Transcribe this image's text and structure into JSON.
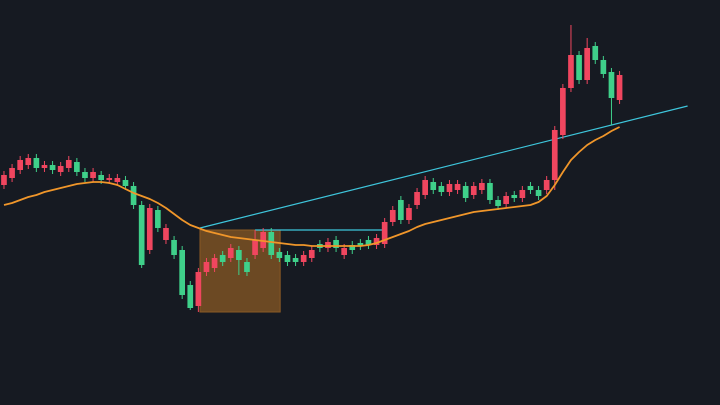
{
  "chart_data": {
    "type": "candlestick",
    "background": "#161a22",
    "up_color": "#f0465f",
    "down_color": "#3fd08a",
    "xlim": [
      -0.49,
      88.4
    ],
    "ylim": [
      0,
      405
    ],
    "open": [
      220,
      227,
      235,
      240,
      247,
      237,
      240,
      233,
      237,
      243,
      233,
      227,
      230,
      225,
      223,
      225,
      219,
      200,
      155,
      195,
      165,
      165,
      155,
      120,
      99,
      133,
      137,
      150,
      147,
      155,
      143,
      150,
      157,
      173,
      153,
      150,
      147,
      143,
      147,
      161,
      157,
      165,
      150,
      160,
      162,
      165,
      160,
      161,
      183,
      205,
      185,
      200,
      210,
      223,
      219,
      213,
      215,
      219,
      210,
      215,
      222,
      205,
      201,
      210,
      207,
      219,
      215,
      215,
      225,
      270,
      317,
      350,
      325,
      359,
      345,
      333,
      305
    ],
    "high": [
      234,
      241,
      249,
      251,
      251,
      244,
      244,
      243,
      249,
      247,
      237,
      237,
      234,
      231,
      231,
      229,
      223,
      204,
      201,
      199,
      181,
      169,
      159,
      124,
      137,
      147,
      151,
      154,
      161,
      159,
      147,
      175,
      177,
      177,
      157,
      154,
      151,
      154,
      159,
      165,
      167,
      169,
      161,
      164,
      166,
      169,
      171,
      187,
      199,
      209,
      201,
      217,
      229,
      227,
      223,
      225,
      225,
      223,
      223,
      226,
      226,
      209,
      213,
      214,
      219,
      223,
      219,
      229,
      279,
      321,
      380,
      354,
      367,
      363,
      349,
      337,
      334
    ],
    "low": [
      216,
      223,
      231,
      236,
      233,
      233,
      231,
      229,
      233,
      229,
      223,
      223,
      221,
      221,
      219,
      215,
      196,
      137,
      151,
      173,
      161,
      146,
      106,
      95,
      93,
      129,
      133,
      139,
      143,
      130,
      129,
      146,
      153,
      146,
      143,
      139,
      139,
      139,
      143,
      153,
      153,
      153,
      146,
      151,
      155,
      156,
      156,
      157,
      179,
      181,
      181,
      196,
      206,
      211,
      209,
      209,
      211,
      203,
      206,
      211,
      201,
      195,
      197,
      203,
      203,
      211,
      205,
      211,
      215,
      266,
      313,
      321,
      321,
      341,
      327,
      280,
      301
    ],
    "close": [
      230,
      237,
      245,
      247,
      237,
      240,
      235,
      239,
      245,
      233,
      227,
      233,
      225,
      227,
      227,
      219,
      200,
      140,
      197,
      177,
      177,
      150,
      110,
      97,
      133,
      143,
      147,
      143,
      157,
      145,
      133,
      165,
      173,
      150,
      147,
      143,
      143,
      150,
      155,
      157,
      163,
      157,
      157,
      155,
      159,
      160,
      167,
      183,
      195,
      185,
      197,
      213,
      225,
      215,
      213,
      221,
      221,
      207,
      219,
      222,
      205,
      199,
      209,
      207,
      215,
      215,
      209,
      225,
      275,
      317,
      350,
      325,
      357,
      345,
      331,
      307,
      330
    ],
    "moving_average": {
      "color": "#f0962a",
      "values": [
        200,
        202,
        205,
        208,
        210,
        213,
        215,
        217,
        219,
        221,
        222,
        223,
        223,
        222,
        220,
        216,
        212,
        209,
        206,
        202,
        197,
        191,
        185,
        180,
        177,
        174,
        172,
        170,
        168,
        167,
        166,
        165,
        164,
        163,
        162,
        161,
        160,
        160,
        159,
        159,
        159,
        159,
        159,
        159,
        159,
        160,
        162,
        165,
        168,
        171,
        174,
        178,
        181,
        183,
        185,
        187,
        189,
        191,
        193,
        194,
        195,
        196,
        197,
        198,
        199,
        200,
        203,
        209,
        220,
        233,
        245,
        253,
        260,
        265,
        269,
        274,
        278
      ]
    },
    "trendlines": [
      {
        "color": "#3ec6dc",
        "x": [
          24.2,
          84.4
        ],
        "y": [
          177,
          299
        ]
      },
      {
        "color": "#3ec6dc",
        "x": [
          31,
          46.7
        ],
        "y": [
          175,
          175
        ]
      }
    ],
    "box": {
      "color": "#8a5a24",
      "x": [
        24.2,
        34.1
      ],
      "y": [
        93,
        175
      ]
    }
  }
}
